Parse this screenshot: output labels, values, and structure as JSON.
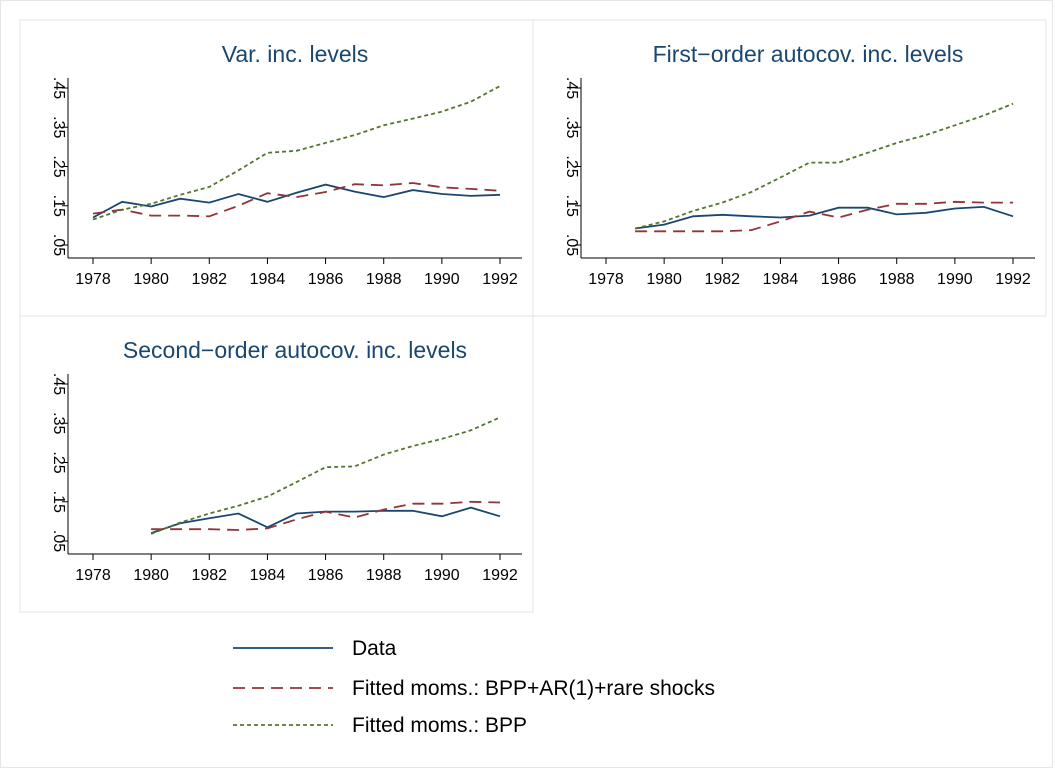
{
  "chart_data": [
    {
      "type": "line",
      "title": "Var. inc. levels",
      "x": [
        1978,
        1979,
        1980,
        1981,
        1982,
        1983,
        1984,
        1985,
        1986,
        1987,
        1988,
        1989,
        1990,
        1991,
        1992
      ],
      "series": [
        {
          "name": "Data",
          "color": "#1a476f",
          "style": "solid",
          "values": [
            0.12,
            0.16,
            0.148,
            0.168,
            0.158,
            0.18,
            0.16,
            0.183,
            0.204,
            0.186,
            0.172,
            0.19,
            0.18,
            0.175,
            0.178
          ]
        },
        {
          "name": "Fitted moms.: BPP+AR(1)+rare shocks",
          "color": "#90353b",
          "style": "dashed",
          "values": [
            0.13,
            0.14,
            0.125,
            0.125,
            0.123,
            0.15,
            0.182,
            0.172,
            0.185,
            0.205,
            0.202,
            0.208,
            0.197,
            0.193,
            0.188
          ]
        },
        {
          "name": "Fitted moms.: BPP",
          "color": "#55752f",
          "style": "dotted",
          "values": [
            0.115,
            0.14,
            0.155,
            0.178,
            0.198,
            0.24,
            0.285,
            0.29,
            0.31,
            0.33,
            0.355,
            0.372,
            0.39,
            0.415,
            0.455
          ]
        }
      ],
      "xlim": [
        1978,
        1992
      ],
      "xticks": [
        1978,
        1980,
        1982,
        1984,
        1986,
        1988,
        1990,
        1992
      ],
      "ylim": [
        0.05,
        0.45
      ],
      "yticks": [
        {
          "value": 0.05,
          "label": ".05"
        },
        {
          "value": 0.15,
          "label": ".15"
        },
        {
          "value": 0.25,
          "label": ".25"
        },
        {
          "value": 0.35,
          "label": ".35"
        },
        {
          "value": 0.45,
          "label": ".45"
        }
      ]
    },
    {
      "type": "line",
      "title": "First−order autocov. inc. levels",
      "x": [
        1978,
        1979,
        1980,
        1981,
        1982,
        1983,
        1984,
        1985,
        1986,
        1987,
        1988,
        1989,
        1990,
        1991,
        1992
      ],
      "series": [
        {
          "color": "#1a476f",
          "style": "solid",
          "values": [
            null,
            0.092,
            0.102,
            0.123,
            0.127,
            0.123,
            0.12,
            0.125,
            0.145,
            0.145,
            0.128,
            0.132,
            0.143,
            0.147,
            0.123
          ]
        },
        {
          "color": "#90353b",
          "style": "dashed",
          "values": [
            null,
            0.085,
            0.085,
            0.085,
            0.085,
            0.088,
            0.11,
            0.135,
            0.12,
            0.14,
            0.155,
            0.155,
            0.16,
            0.158,
            0.158
          ]
        },
        {
          "color": "#55752f",
          "style": "dotted",
          "values": [
            null,
            0.092,
            0.11,
            0.137,
            0.158,
            0.185,
            0.222,
            0.26,
            0.26,
            0.285,
            0.31,
            0.33,
            0.355,
            0.38,
            0.41
          ]
        }
      ],
      "xlim": [
        1978,
        1992
      ],
      "xticks": [
        1978,
        1980,
        1982,
        1984,
        1986,
        1988,
        1990,
        1992
      ],
      "ylim": [
        0.05,
        0.45
      ],
      "yticks": [
        {
          "value": 0.05,
          "label": ".05"
        },
        {
          "value": 0.15,
          "label": ".15"
        },
        {
          "value": 0.25,
          "label": ".25"
        },
        {
          "value": 0.35,
          "label": ".35"
        },
        {
          "value": 0.45,
          "label": ".45"
        }
      ]
    },
    {
      "type": "line",
      "title": "Second−order autocov. inc. levels",
      "x": [
        1978,
        1979,
        1980,
        1981,
        1982,
        1983,
        1984,
        1985,
        1986,
        1987,
        1988,
        1989,
        1990,
        1991,
        1992
      ],
      "series": [
        {
          "color": "#1a476f",
          "style": "solid",
          "values": [
            null,
            null,
            0.07,
            0.095,
            0.108,
            0.12,
            0.085,
            0.12,
            0.125,
            0.125,
            0.127,
            0.127,
            0.113,
            0.135,
            0.113
          ]
        },
        {
          "color": "#90353b",
          "style": "dashed",
          "values": [
            null,
            null,
            0.08,
            0.08,
            0.08,
            0.078,
            0.082,
            0.105,
            0.125,
            0.11,
            0.13,
            0.145,
            0.145,
            0.15,
            0.148
          ]
        },
        {
          "color": "#55752f",
          "style": "dotted",
          "values": [
            null,
            null,
            0.068,
            0.097,
            0.12,
            0.14,
            0.163,
            0.2,
            0.238,
            0.24,
            0.27,
            0.292,
            0.31,
            0.332,
            0.365
          ]
        }
      ],
      "xlim": [
        1978,
        1992
      ],
      "xticks": [
        1978,
        1980,
        1982,
        1984,
        1986,
        1988,
        1990,
        1992
      ],
      "ylim": [
        0.05,
        0.45
      ],
      "yticks": [
        {
          "value": 0.05,
          "label": ".05"
        },
        {
          "value": 0.15,
          "label": ".15"
        },
        {
          "value": 0.25,
          "label": ".25"
        },
        {
          "value": 0.35,
          "label": ".35"
        },
        {
          "value": 0.45,
          "label": ".45"
        }
      ]
    }
  ]
}
